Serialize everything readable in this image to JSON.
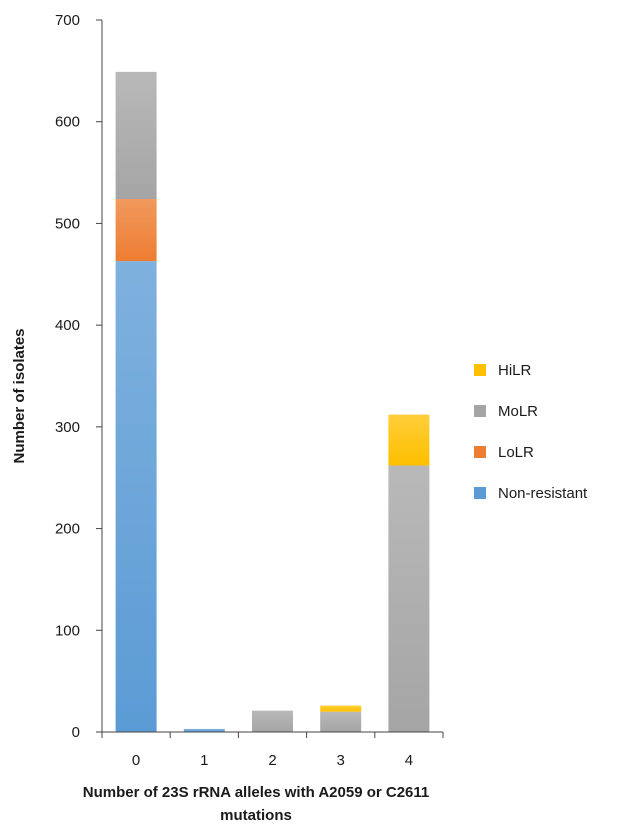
{
  "chart_data": {
    "type": "bar",
    "stacked": true,
    "categories": [
      "0",
      "1",
      "2",
      "3",
      "4"
    ],
    "series": [
      {
        "name": "Non-resistant",
        "color": "#5b9bd5",
        "values": [
          463,
          3,
          0,
          0,
          0
        ]
      },
      {
        "name": "LoLR",
        "color": "#ed7d31",
        "values": [
          61,
          0,
          0,
          0,
          0
        ]
      },
      {
        "name": "MoLR",
        "color": "#a5a5a5",
        "values": [
          125,
          0,
          21,
          20,
          262
        ]
      },
      {
        "name": "HiLR",
        "color": "#ffc000",
        "values": [
          0,
          0,
          0,
          6,
          50
        ]
      }
    ],
    "legend_order": [
      "HiLR",
      "MoLR",
      "LoLR",
      "Non-resistant"
    ],
    "legend_position": "right",
    "xlabel_lines": [
      "Number of 23S rRNA alleles with A2059 or C2611",
      "mutations"
    ],
    "ylabel": "Number of isolates",
    "ylim": [
      0,
      700
    ],
    "yticks": [
      "0",
      "100",
      "200",
      "300",
      "400",
      "500",
      "600",
      "700"
    ],
    "grid": false
  }
}
